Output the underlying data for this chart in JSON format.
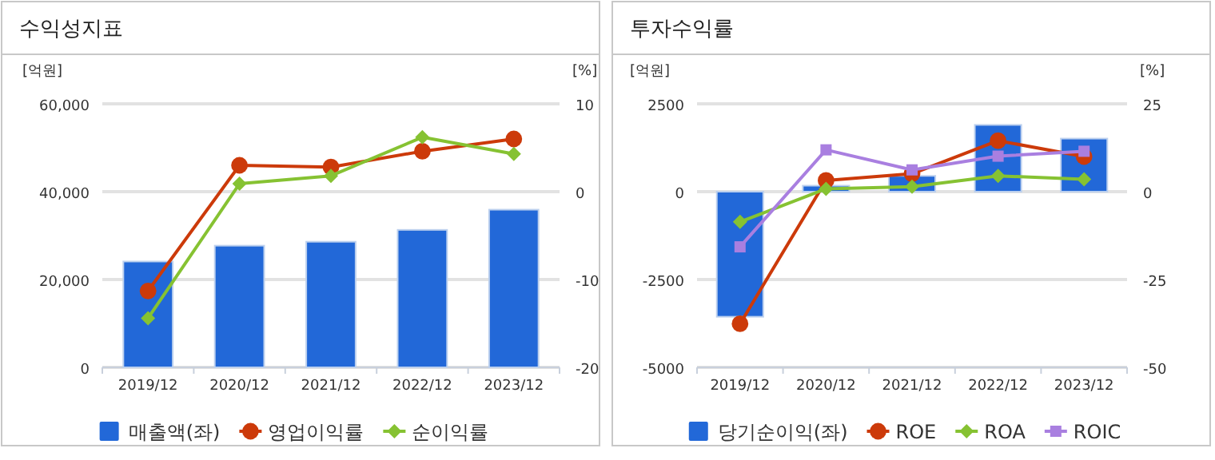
{
  "chart_data": [
    {
      "type": "bar",
      "title": "수익성지표",
      "categories": [
        "2019/12",
        "2020/12",
        "2021/12",
        "2022/12",
        "2023/12"
      ],
      "ylabel": "[억원]",
      "y2label": "[%]",
      "ylim": [
        0,
        60000
      ],
      "yticks": [
        {
          "value": 0,
          "label": "0"
        },
        {
          "value": 20000,
          "label": "20,000"
        },
        {
          "value": 40000,
          "label": "40,000"
        },
        {
          "value": 60000,
          "label": "60,000"
        }
      ],
      "y2lim": [
        -20,
        10
      ],
      "y2ticks": [
        -20,
        -10,
        0,
        10
      ],
      "grid": "y",
      "legend": "bottom",
      "series": [
        {
          "name": "매출액(좌)",
          "color": "#2268d8",
          "values": [
            24100,
            27700,
            28600,
            31300,
            35900
          ]
        },
        {
          "name": "영업이익률",
          "type": "line",
          "axis": "y2",
          "marker": "circle",
          "color": "#cc3a0a",
          "values": [
            -11.3,
            3.0,
            2.8,
            4.6,
            6.0
          ]
        },
        {
          "name": "순이익률",
          "type": "line",
          "axis": "y2",
          "marker": "diamond",
          "color": "#86c232",
          "values": [
            -14.4,
            0.9,
            1.8,
            6.2,
            4.3
          ]
        }
      ]
    },
    {
      "type": "bar",
      "title": "투자수익률",
      "categories": [
        "2019/12",
        "2020/12",
        "2021/12",
        "2022/12",
        "2023/12"
      ],
      "ylabel": "[억원]",
      "y2label": "[%]",
      "ylim": [
        -5000,
        2500
      ],
      "yticks": [
        -5000,
        -2500,
        0,
        2500
      ],
      "y2lim": [
        -50,
        25
      ],
      "y2ticks": [
        -50,
        -25,
        0,
        25
      ],
      "grid": "y",
      "legend": "bottom",
      "series": [
        {
          "name": "당기순이익(좌)",
          "color": "#2268d8",
          "values": [
            -3560,
            170,
            450,
            1900,
            1510
          ]
        },
        {
          "name": "ROE",
          "type": "line",
          "axis": "y2",
          "marker": "circle",
          "color": "#cc3a0a",
          "values": [
            -37.6,
            3.2,
            5.1,
            14.5,
            10.0
          ]
        },
        {
          "name": "ROA",
          "type": "line",
          "axis": "y2",
          "marker": "diamond",
          "color": "#86c232",
          "values": [
            -8.6,
            0.8,
            1.4,
            4.5,
            3.5
          ]
        },
        {
          "name": "ROIC",
          "type": "line",
          "axis": "y2",
          "marker": "square",
          "color": "#a97fe0",
          "values": [
            -15.7,
            11.9,
            6.2,
            10.1,
            11.5
          ]
        }
      ]
    }
  ]
}
